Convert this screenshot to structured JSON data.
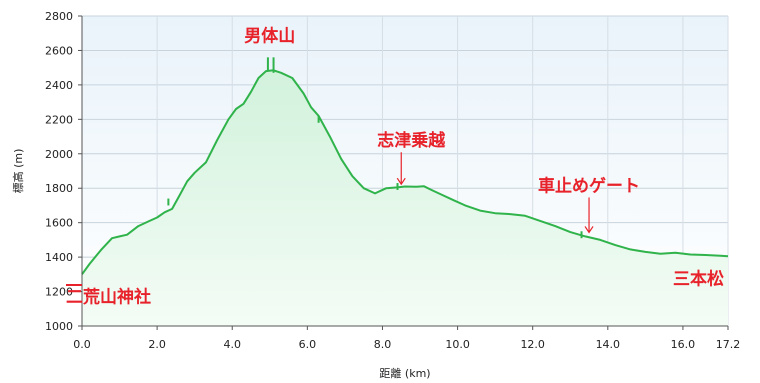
{
  "chart_data": {
    "type": "area",
    "xlabel": "距離 (km)",
    "ylabel": "標高 (m)",
    "xlim": [
      0,
      17.2
    ],
    "ylim": [
      1000,
      2800
    ],
    "x_ticks": [
      0.0,
      2.0,
      4.0,
      6.0,
      8.0,
      10.0,
      12.0,
      14.0,
      16.0,
      17.2
    ],
    "x_tick_labels": [
      "0.0",
      "2.0",
      "4.0",
      "6.0",
      "8.0",
      "10.0",
      "12.0",
      "14.0",
      "16.0",
      "17.2"
    ],
    "y_ticks": [
      1000,
      1200,
      1400,
      1600,
      1800,
      2000,
      2200,
      2400,
      2600,
      2800
    ],
    "grid": true,
    "colors": {
      "line": "#2fb34a",
      "fill_top": "#d2f2dc",
      "fill_bottom": "#f4fcf6",
      "background_top": "#e9f3fa",
      "background_bottom": "#ffffff",
      "annotation": "#e8222a"
    },
    "x": [
      0.0,
      0.2,
      0.5,
      0.8,
      1.0,
      1.2,
      1.5,
      1.8,
      2.0,
      2.2,
      2.4,
      2.6,
      2.8,
      3.0,
      3.3,
      3.6,
      3.9,
      4.1,
      4.3,
      4.5,
      4.7,
      4.9,
      5.1,
      5.3,
      5.6,
      5.9,
      6.1,
      6.3,
      6.6,
      6.9,
      7.2,
      7.5,
      7.8,
      8.1,
      8.4,
      8.6,
      8.9,
      9.1,
      9.3,
      9.6,
      9.9,
      10.2,
      10.6,
      11.0,
      11.4,
      11.8,
      12.2,
      12.6,
      13.0,
      13.4,
      13.8,
      14.2,
      14.6,
      15.0,
      15.4,
      15.8,
      16.2,
      16.6,
      17.0,
      17.2
    ],
    "series": [
      {
        "values": [
          1300,
          1360,
          1440,
          1510,
          1520,
          1530,
          1580,
          1610,
          1630,
          1660,
          1680,
          1760,
          1840,
          1890,
          1950,
          2080,
          2200,
          2260,
          2290,
          2360,
          2440,
          2480,
          2485,
          2470,
          2440,
          2350,
          2270,
          2220,
          2100,
          1970,
          1870,
          1800,
          1770,
          1800,
          1805,
          1810,
          1808,
          1812,
          1790,
          1760,
          1730,
          1700,
          1670,
          1655,
          1650,
          1640,
          1610,
          1580,
          1545,
          1520,
          1500,
          1470,
          1445,
          1430,
          1420,
          1425,
          1415,
          1412,
          1408,
          1405
        ]
      }
    ],
    "annotations": [
      {
        "text": "男体山",
        "x": 5.0,
        "y": 2490,
        "arrow": false
      },
      {
        "text": "志津乗越",
        "x": 8.5,
        "y": 1800,
        "arrow": true
      },
      {
        "text": "車止めゲート",
        "x": 13.5,
        "y": 1520,
        "arrow": true
      },
      {
        "text": "二荒山神社",
        "x": 0.0,
        "y": 1300,
        "arrow": false
      },
      {
        "text": "三本松",
        "x": 17.2,
        "y": 1405,
        "arrow": false
      }
    ]
  }
}
